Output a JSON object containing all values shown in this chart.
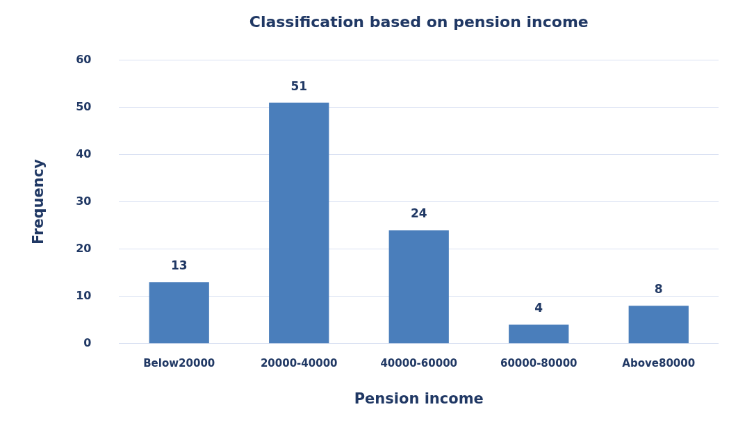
{
  "chart_data": {
    "type": "bar",
    "title": "Classification based on pension income",
    "xlabel": "Pension income",
    "ylabel": "Frequency",
    "categories": [
      "Below20000",
      "20000-40000",
      "40000-60000",
      "60000-80000",
      "Above80000"
    ],
    "values": [
      13,
      51,
      24,
      4,
      8
    ],
    "color": "#4a7ebb",
    "ylim": [
      0,
      60
    ],
    "yticks": [
      0,
      10,
      20,
      30,
      40,
      50,
      60
    ],
    "grid": "y",
    "data_labels": true
  }
}
